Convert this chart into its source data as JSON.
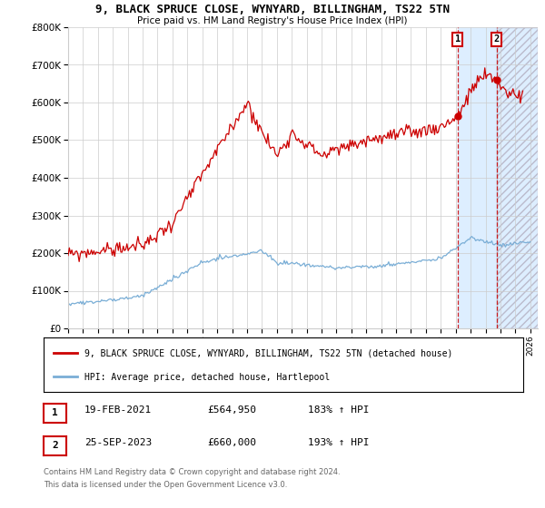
{
  "title": "9, BLACK SPRUCE CLOSE, WYNYARD, BILLINGHAM, TS22 5TN",
  "subtitle": "Price paid vs. HM Land Registry's House Price Index (HPI)",
  "ylim": [
    0,
    800000
  ],
  "yticks": [
    0,
    100000,
    200000,
    300000,
    400000,
    500000,
    600000,
    700000,
    800000
  ],
  "ytick_labels": [
    "£0",
    "£100K",
    "£200K",
    "£300K",
    "£400K",
    "£500K",
    "£600K",
    "£700K",
    "£800K"
  ],
  "xlim_start": 1995.0,
  "xlim_end": 2026.5,
  "sale1_date": 2021.12,
  "sale1_price": 564950,
  "sale2_date": 2023.73,
  "sale2_price": 660000,
  "legend_line1": "9, BLACK SPRUCE CLOSE, WYNYARD, BILLINGHAM, TS22 5TN (detached house)",
  "legend_line2": "HPI: Average price, detached house, Hartlepool",
  "footer1": "Contains HM Land Registry data © Crown copyright and database right 2024.",
  "footer2": "This data is licensed under the Open Government Licence v3.0.",
  "red_color": "#cc0000",
  "blue_color": "#7aaed6",
  "bg_color": "#ffffff",
  "grid_color": "#cccccc",
  "shade_color": "#ddeeff",
  "hatch_color": "#bbbbcc"
}
